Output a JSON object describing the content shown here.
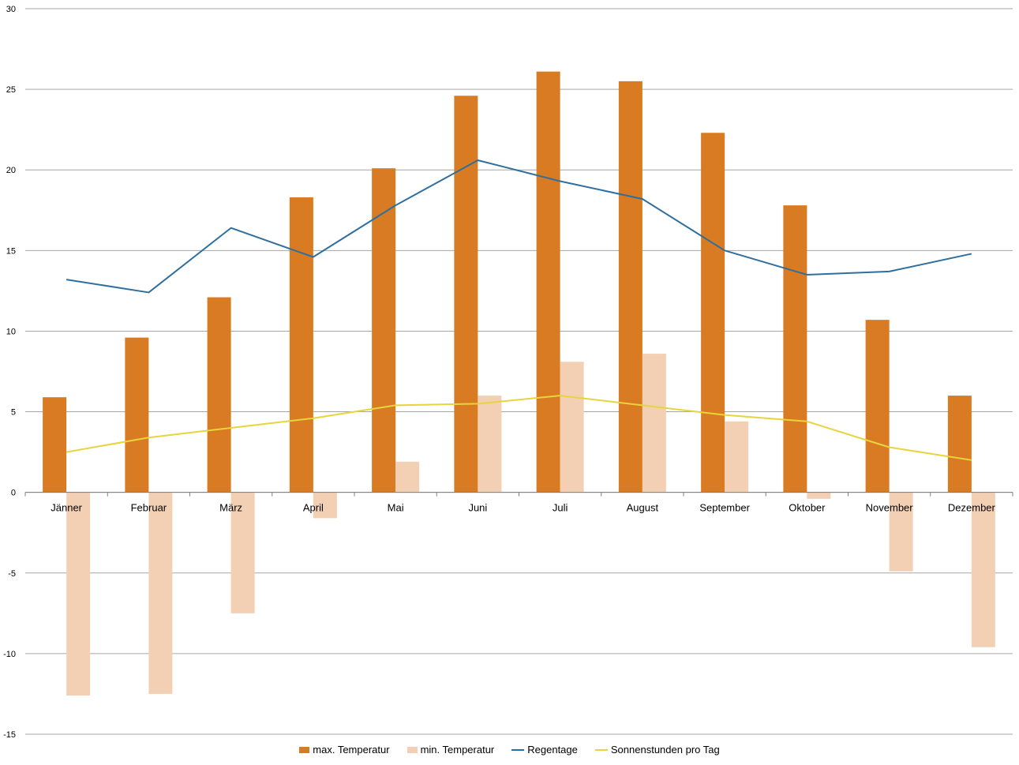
{
  "chart_data": {
    "type": "bar",
    "categories": [
      "Jänner",
      "Februar",
      "März",
      "April",
      "Mai",
      "Juni",
      "Juli",
      "August",
      "September",
      "Oktober",
      "November",
      "Dezember"
    ],
    "series": [
      {
        "name": "max. Temperatur",
        "type": "bar",
        "color": "#D97B22",
        "values": [
          5.9,
          9.6,
          12.1,
          18.3,
          20.1,
          24.6,
          26.1,
          25.5,
          22.3,
          17.8,
          10.7,
          6.0
        ]
      },
      {
        "name": "min. Temperatur",
        "type": "bar",
        "color": "#F3D0B4",
        "values": [
          -12.6,
          -12.5,
          -7.5,
          -1.6,
          1.9,
          6.0,
          8.1,
          8.6,
          4.4,
          -0.4,
          -4.9,
          -9.6
        ]
      },
      {
        "name": "Regentage",
        "type": "line",
        "color": "#2E6F9E",
        "values": [
          13.2,
          12.4,
          16.4,
          14.6,
          17.8,
          20.6,
          19.3,
          18.2,
          15.0,
          13.5,
          13.7,
          14.8
        ]
      },
      {
        "name": "Sonnenstunden pro Tag",
        "type": "line",
        "color": "#E8D43C",
        "values": [
          2.5,
          3.4,
          4.0,
          4.6,
          5.4,
          5.5,
          6.0,
          5.4,
          4.8,
          4.4,
          2.8,
          2.0
        ]
      }
    ],
    "ylim": [
      -15,
      30
    ],
    "yticks": [
      "-15",
      "-10",
      "-5",
      "0",
      "5",
      "10",
      "15",
      "20",
      "25",
      "30"
    ],
    "grid": true,
    "legend_position": "bottom",
    "title": "",
    "xlabel": "",
    "ylabel": ""
  }
}
